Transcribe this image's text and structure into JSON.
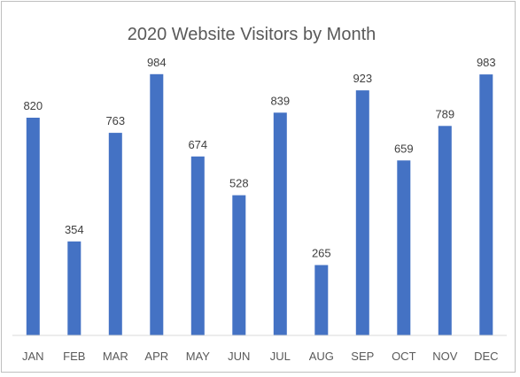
{
  "chart_data": {
    "type": "bar",
    "title": "2020 Website Visitors by Month",
    "xlabel": "",
    "ylabel": "",
    "categories": [
      "JAN",
      "FEB",
      "MAR",
      "APR",
      "MAY",
      "JUN",
      "JUL",
      "AUG",
      "SEP",
      "OCT",
      "NOV",
      "DEC"
    ],
    "values": [
      820,
      354,
      763,
      984,
      674,
      528,
      839,
      265,
      923,
      659,
      789,
      983
    ],
    "ylim": [
      0,
      1000
    ],
    "grid": false,
    "legend": "none",
    "data_labels": true,
    "bar_color": "#4472C4",
    "axis_color": "#d9d9d9"
  }
}
